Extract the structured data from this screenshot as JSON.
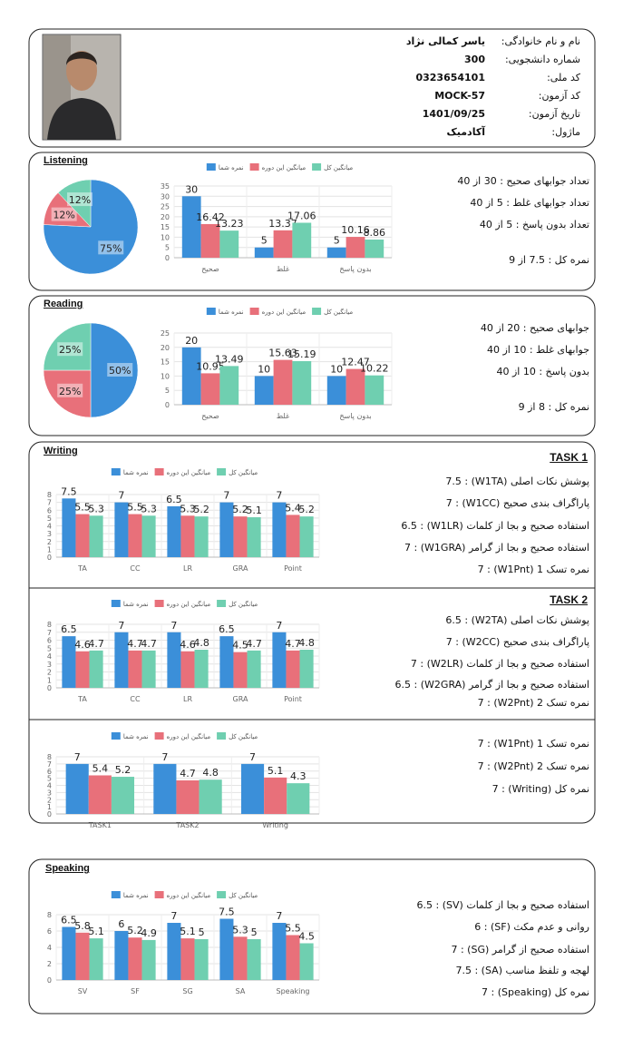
{
  "header": {
    "fields": [
      {
        "label": "نام و نام خانوادگی:",
        "value": "یاسر کمالی نژاد"
      },
      {
        "label": "شماره دانشجویی:",
        "value": "300"
      },
      {
        "label": "کد ملی:",
        "value": "0323654101"
      },
      {
        "label": "کد آزمون:",
        "value": "MOCK-57"
      },
      {
        "label": "تاریخ آزمون:",
        "value": "1401/09/25"
      },
      {
        "label": "ماژول:",
        "value": "آکادمیک"
      }
    ]
  },
  "listening": {
    "title": "Listening",
    "lines": [
      "تعداد جوابهای صحیح : 30 از 40",
      "تعداد جوابهای غلط : 5 از 40",
      "تعداد بدون پاسخ : 5 از 40",
      "نمره کل : 7.5 از 9"
    ]
  },
  "reading": {
    "title": "Reading",
    "lines": [
      "جوابهای صحیح : 20 از 40",
      "جوابهای غلط : 10 از 40",
      "بدون پاسخ : 10 از 40",
      "نمره کل : 8 از 9"
    ]
  },
  "writing": {
    "title": "Writing",
    "task1_title": "TASK 1",
    "task1_lines": [
      "پوشش نکات اصلی (W1TA) : 7.5",
      "پاراگراف بندی صحیح (W1CC) : 7",
      "استفاده صحیح و بجا از کلمات (W1LR) : 6.5",
      "استفاده صحیح و بجا از گرامر (W1GRA) : 7",
      "نمره تسک 1 (W1Pnt) : 7"
    ],
    "task2_title": "TASK 2",
    "task2_lines": [
      "پوشش نکات اصلی (W2TA) : 6.5",
      "پاراگراف بندی صحیح (W2CC) : 7",
      "استفاده صحیح و بجا از کلمات (W2LR) : 7",
      "استفاده صحیح و بجا از گرامر (W2GRA) : 6.5",
      "نمره تسک 2 (W2Pnt) : 7"
    ],
    "summary_lines": [
      "نمره تسک 1 (W1Pnt) : 7",
      "نمره تسک 2 (W2Pnt) : 7",
      "نمره کل (Writing) : 7"
    ]
  },
  "speaking": {
    "title": "Speaking",
    "lines": [
      "استفاده صحیح و بجا از کلمات (SV) : 6.5",
      "روانی و عدم مکث (SF) : 6",
      "استفاده صحیح از گرامر (SG) : 7",
      "لهجه و تلفظ مناسب (SA) : 7.5",
      "نمره کل (Speaking) : 7"
    ]
  },
  "chart_data": [
    {
      "type": "pie",
      "values": [
        75,
        12,
        12
      ],
      "value_labels": [
        "75%",
        "12%",
        "12%"
      ],
      "colors": [
        "#3b8fd9",
        "#e8707a",
        "#6fcfb0"
      ]
    },
    {
      "type": "bar",
      "categories": [
        "صحیح",
        "غلط",
        "بدون پاسخ"
      ],
      "series": [
        {
          "name": "نمره شما",
          "color": "#3b8fd9",
          "values": [
            30,
            5,
            5
          ]
        },
        {
          "name": "میانگین این دوره",
          "color": "#e8707a",
          "values": [
            16.42,
            13.37,
            10.16
          ]
        },
        {
          "name": "میانگین کل",
          "color": "#6fcfb0",
          "values": [
            13.23,
            17.06,
            8.86
          ]
        }
      ],
      "ylim": [
        0,
        35
      ],
      "yticks": [
        0,
        5,
        10,
        15,
        20,
        25,
        30,
        35
      ],
      "grid": true,
      "legend": "top"
    },
    {
      "type": "pie",
      "values": [
        50,
        25,
        25
      ],
      "value_labels": [
        "50%",
        "25%",
        "25%"
      ],
      "colors": [
        "#3b8fd9",
        "#e8707a",
        "#6fcfb0"
      ]
    },
    {
      "type": "bar",
      "categories": [
        "صحیح",
        "غلط",
        "بدون پاسخ"
      ],
      "series": [
        {
          "name": "نمره شما",
          "color": "#3b8fd9",
          "values": [
            20,
            10,
            10
          ]
        },
        {
          "name": "میانگین این دوره",
          "color": "#e8707a",
          "values": [
            10.95,
            15.63,
            12.47
          ]
        },
        {
          "name": "میانگین کل",
          "color": "#6fcfb0",
          "values": [
            13.49,
            15.19,
            10.22
          ]
        }
      ],
      "ylim": [
        0,
        25
      ],
      "yticks": [
        0,
        5,
        10,
        15,
        20,
        25
      ],
      "grid": true,
      "legend": "top"
    },
    {
      "type": "bar",
      "categories": [
        "TA",
        "CC",
        "LR",
        "GRA",
        "Point"
      ],
      "series": [
        {
          "name": "نمره شما",
          "color": "#3b8fd9",
          "values": [
            7.5,
            7,
            6.5,
            7,
            7
          ]
        },
        {
          "name": "میانگین این دوره",
          "color": "#e8707a",
          "values": [
            5.5,
            5.5,
            5.3,
            5.2,
            5.4
          ]
        },
        {
          "name": "میانگین کل",
          "color": "#6fcfb0",
          "values": [
            5.3,
            5.3,
            5.2,
            5.1,
            5.2
          ]
        }
      ],
      "ylim": [
        0,
        8
      ],
      "yticks": [
        0,
        1,
        2,
        3,
        4,
        5,
        6,
        7,
        8
      ],
      "grid": true,
      "legend": "top"
    },
    {
      "type": "bar",
      "categories": [
        "TA",
        "CC",
        "LR",
        "GRA",
        "Point"
      ],
      "series": [
        {
          "name": "نمره شما",
          "color": "#3b8fd9",
          "values": [
            6.5,
            7,
            7,
            6.5,
            7
          ]
        },
        {
          "name": "میانگین این دوره",
          "color": "#e8707a",
          "values": [
            4.6,
            4.7,
            4.6,
            4.5,
            4.7
          ]
        },
        {
          "name": "میانگین کل",
          "color": "#6fcfb0",
          "values": [
            4.7,
            4.7,
            4.8,
            4.7,
            4.8
          ]
        }
      ],
      "ylim": [
        0,
        8
      ],
      "yticks": [
        0,
        1,
        2,
        3,
        4,
        5,
        6,
        7,
        8
      ],
      "grid": true,
      "legend": "top"
    },
    {
      "type": "bar",
      "categories": [
        "TASK1",
        "TASK2",
        "Writing"
      ],
      "series": [
        {
          "name": "نمره شما",
          "color": "#3b8fd9",
          "values": [
            7,
            7,
            7
          ]
        },
        {
          "name": "میانگین این دوره",
          "color": "#e8707a",
          "values": [
            5.4,
            4.7,
            5.1
          ]
        },
        {
          "name": "میانگین کل",
          "color": "#6fcfb0",
          "values": [
            5.2,
            4.8,
            4.3
          ]
        }
      ],
      "ylim": [
        0,
        8
      ],
      "yticks": [
        0,
        1,
        2,
        3,
        4,
        5,
        6,
        7,
        8
      ],
      "grid": true,
      "legend": "top"
    },
    {
      "type": "bar",
      "categories": [
        "SV",
        "SF",
        "SG",
        "SA",
        "Speaking"
      ],
      "series": [
        {
          "name": "نمره شما",
          "color": "#3b8fd9",
          "values": [
            6.5,
            6,
            7,
            7.5,
            7
          ]
        },
        {
          "name": "میانگین این دوره",
          "color": "#e8707a",
          "values": [
            5.8,
            5.2,
            5.1,
            5.3,
            5.5
          ]
        },
        {
          "name": "میانگین کل",
          "color": "#6fcfb0",
          "values": [
            5.1,
            4.9,
            5,
            5,
            4.5
          ]
        }
      ],
      "ylim": [
        0,
        8
      ],
      "yticks": [
        0,
        2,
        4,
        6,
        8
      ],
      "grid": true,
      "legend": "top"
    }
  ]
}
